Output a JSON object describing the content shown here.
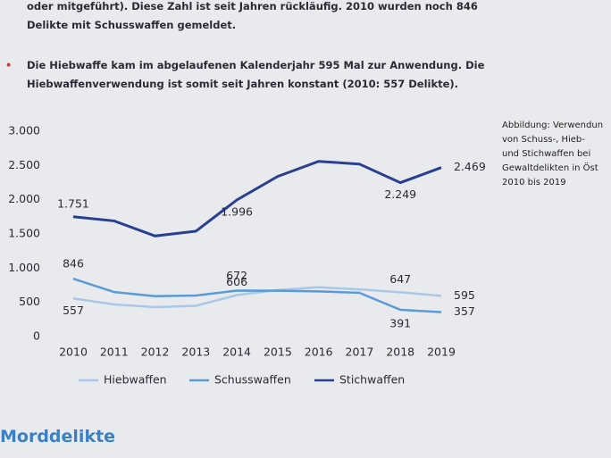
{
  "text_lines": [
    "oder mitgeführt). Diese Zahl ist seit Jahren rückläufig. 2010 wurden noch 846",
    "Delikte mit Schusswaffen gemeldet."
  ],
  "bullet_lines": [
    "Die Hiebwaffe kam im abgelaufenen Kalenderjahr 595 Mal zur Anwendung. Die",
    "Hiebwaffenverwendung ist somit seit Jahren konstant (2010: 557 Delikte)."
  ],
  "caption_lines": [
    "Abbildung: Verwendun",
    "von Schuss-, Hieb-",
    "und Stichwaffen bei",
    "Gewaltdelikten in Öst",
    "2010 bis 2019"
  ],
  "heading": "Morddelikte",
  "chart_data": {
    "type": "line",
    "categories": [
      "2010",
      "2011",
      "2012",
      "2013",
      "2014",
      "2015",
      "2016",
      "2017",
      "2018",
      "2019"
    ],
    "series": [
      {
        "name": "Hiebwaffen",
        "color": "#a9c8e8",
        "values": [
          557,
          470,
          430,
          450,
          606,
          680,
          720,
          690,
          647,
          595
        ],
        "value_labels": [
          "557",
          null,
          null,
          null,
          "606",
          null,
          null,
          null,
          "647",
          "595"
        ]
      },
      {
        "name": "Schusswaffen",
        "color": "#5b9bd5",
        "values": [
          846,
          650,
          590,
          600,
          672,
          670,
          660,
          640,
          391,
          357
        ],
        "value_labels": [
          "846",
          null,
          null,
          null,
          "672",
          null,
          null,
          null,
          "391",
          "357"
        ]
      },
      {
        "name": "Stichwaffen",
        "color": "#2a3f8f",
        "values": [
          1751,
          1690,
          1470,
          1540,
          1996,
          2340,
          2560,
          2520,
          2249,
          2469
        ],
        "value_labels": [
          "1.751",
          null,
          null,
          null,
          "1.996",
          null,
          null,
          null,
          "2.249",
          "2.469"
        ]
      }
    ],
    "ylim": [
      0,
      3000
    ],
    "yticks": [
      {
        "value": 3000,
        "label": "3.000"
      },
      {
        "value": 2500,
        "label": "2.500"
      },
      {
        "value": 2000,
        "label": "2.000"
      },
      {
        "value": 1500,
        "label": "1.500"
      },
      {
        "value": 1000,
        "label": "1.000"
      },
      500,
      0
    ],
    "legend": "bottom"
  }
}
